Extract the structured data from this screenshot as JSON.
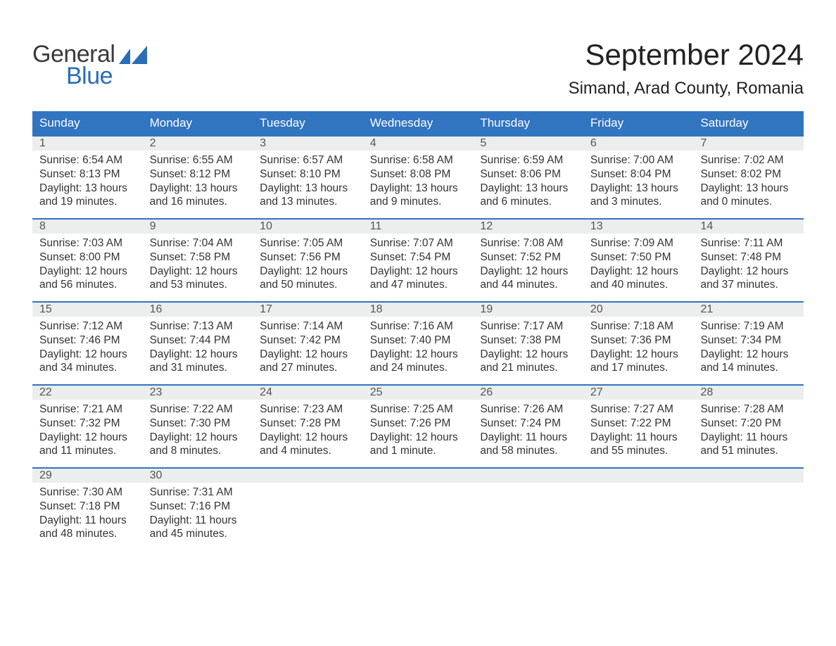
{
  "logo": {
    "line1": "General",
    "line2": "Blue",
    "icon_color": "#2a6db8",
    "text_gray": "#3a3a3a"
  },
  "title": "September 2024",
  "location": "Simand, Arad County, Romania",
  "colors": {
    "header_bg": "#3174c0",
    "header_fg": "#ffffff",
    "daynum_bg": "#eceded",
    "border": "#3174c0",
    "body_bg": "#ffffff",
    "text": "#333333"
  },
  "day_headers": [
    "Sunday",
    "Monday",
    "Tuesday",
    "Wednesday",
    "Thursday",
    "Friday",
    "Saturday"
  ],
  "weeks": [
    [
      {
        "n": "1",
        "sunrise": "6:54 AM",
        "sunset": "8:13 PM",
        "dl1": "13 hours",
        "dl2": "and 19 minutes."
      },
      {
        "n": "2",
        "sunrise": "6:55 AM",
        "sunset": "8:12 PM",
        "dl1": "13 hours",
        "dl2": "and 16 minutes."
      },
      {
        "n": "3",
        "sunrise": "6:57 AM",
        "sunset": "8:10 PM",
        "dl1": "13 hours",
        "dl2": "and 13 minutes."
      },
      {
        "n": "4",
        "sunrise": "6:58 AM",
        "sunset": "8:08 PM",
        "dl1": "13 hours",
        "dl2": "and 9 minutes."
      },
      {
        "n": "5",
        "sunrise": "6:59 AM",
        "sunset": "8:06 PM",
        "dl1": "13 hours",
        "dl2": "and 6 minutes."
      },
      {
        "n": "6",
        "sunrise": "7:00 AM",
        "sunset": "8:04 PM",
        "dl1": "13 hours",
        "dl2": "and 3 minutes."
      },
      {
        "n": "7",
        "sunrise": "7:02 AM",
        "sunset": "8:02 PM",
        "dl1": "13 hours",
        "dl2": "and 0 minutes."
      }
    ],
    [
      {
        "n": "8",
        "sunrise": "7:03 AM",
        "sunset": "8:00 PM",
        "dl1": "12 hours",
        "dl2": "and 56 minutes."
      },
      {
        "n": "9",
        "sunrise": "7:04 AM",
        "sunset": "7:58 PM",
        "dl1": "12 hours",
        "dl2": "and 53 minutes."
      },
      {
        "n": "10",
        "sunrise": "7:05 AM",
        "sunset": "7:56 PM",
        "dl1": "12 hours",
        "dl2": "and 50 minutes."
      },
      {
        "n": "11",
        "sunrise": "7:07 AM",
        "sunset": "7:54 PM",
        "dl1": "12 hours",
        "dl2": "and 47 minutes."
      },
      {
        "n": "12",
        "sunrise": "7:08 AM",
        "sunset": "7:52 PM",
        "dl1": "12 hours",
        "dl2": "and 44 minutes."
      },
      {
        "n": "13",
        "sunrise": "7:09 AM",
        "sunset": "7:50 PM",
        "dl1": "12 hours",
        "dl2": "and 40 minutes."
      },
      {
        "n": "14",
        "sunrise": "7:11 AM",
        "sunset": "7:48 PM",
        "dl1": "12 hours",
        "dl2": "and 37 minutes."
      }
    ],
    [
      {
        "n": "15",
        "sunrise": "7:12 AM",
        "sunset": "7:46 PM",
        "dl1": "12 hours",
        "dl2": "and 34 minutes."
      },
      {
        "n": "16",
        "sunrise": "7:13 AM",
        "sunset": "7:44 PM",
        "dl1": "12 hours",
        "dl2": "and 31 minutes."
      },
      {
        "n": "17",
        "sunrise": "7:14 AM",
        "sunset": "7:42 PM",
        "dl1": "12 hours",
        "dl2": "and 27 minutes."
      },
      {
        "n": "18",
        "sunrise": "7:16 AM",
        "sunset": "7:40 PM",
        "dl1": "12 hours",
        "dl2": "and 24 minutes."
      },
      {
        "n": "19",
        "sunrise": "7:17 AM",
        "sunset": "7:38 PM",
        "dl1": "12 hours",
        "dl2": "and 21 minutes."
      },
      {
        "n": "20",
        "sunrise": "7:18 AM",
        "sunset": "7:36 PM",
        "dl1": "12 hours",
        "dl2": "and 17 minutes."
      },
      {
        "n": "21",
        "sunrise": "7:19 AM",
        "sunset": "7:34 PM",
        "dl1": "12 hours",
        "dl2": "and 14 minutes."
      }
    ],
    [
      {
        "n": "22",
        "sunrise": "7:21 AM",
        "sunset": "7:32 PM",
        "dl1": "12 hours",
        "dl2": "and 11 minutes."
      },
      {
        "n": "23",
        "sunrise": "7:22 AM",
        "sunset": "7:30 PM",
        "dl1": "12 hours",
        "dl2": "and 8 minutes."
      },
      {
        "n": "24",
        "sunrise": "7:23 AM",
        "sunset": "7:28 PM",
        "dl1": "12 hours",
        "dl2": "and 4 minutes."
      },
      {
        "n": "25",
        "sunrise": "7:25 AM",
        "sunset": "7:26 PM",
        "dl1": "12 hours",
        "dl2": "and 1 minute."
      },
      {
        "n": "26",
        "sunrise": "7:26 AM",
        "sunset": "7:24 PM",
        "dl1": "11 hours",
        "dl2": "and 58 minutes."
      },
      {
        "n": "27",
        "sunrise": "7:27 AM",
        "sunset": "7:22 PM",
        "dl1": "11 hours",
        "dl2": "and 55 minutes."
      },
      {
        "n": "28",
        "sunrise": "7:28 AM",
        "sunset": "7:20 PM",
        "dl1": "11 hours",
        "dl2": "and 51 minutes."
      }
    ],
    [
      {
        "n": "29",
        "sunrise": "7:30 AM",
        "sunset": "7:18 PM",
        "dl1": "11 hours",
        "dl2": "and 48 minutes."
      },
      {
        "n": "30",
        "sunrise": "7:31 AM",
        "sunset": "7:16 PM",
        "dl1": "11 hours",
        "dl2": "and 45 minutes."
      },
      null,
      null,
      null,
      null,
      null
    ]
  ],
  "labels": {
    "sunrise": "Sunrise: ",
    "sunset": "Sunset: ",
    "daylight": "Daylight: "
  }
}
